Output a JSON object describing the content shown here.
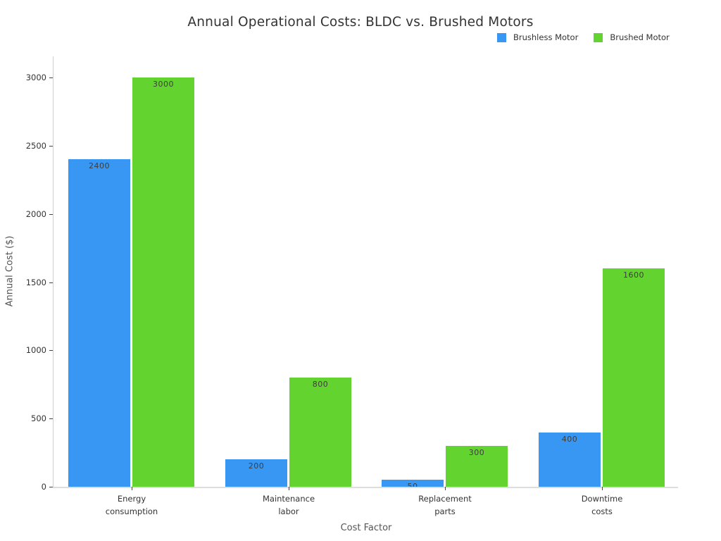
{
  "page": {
    "background": "#ffffff"
  },
  "chart_data": {
    "type": "bar",
    "title": "Annual Operational Costs: BLDC vs. Brushed Motors",
    "xlabel": "Cost Factor",
    "ylabel": "Annual Cost ($)",
    "categories": [
      "Energy\nconsumption",
      "Maintenance\nlabor",
      "Replacement\nparts",
      "Downtime\ncosts"
    ],
    "series": [
      {
        "name": "Brushless Motor",
        "color": "#3897f3",
        "values": [
          2400,
          200,
          50,
          400
        ]
      },
      {
        "name": "Brushed Motor",
        "color": "#63d32f",
        "values": [
          3000,
          800,
          300,
          1600
        ]
      }
    ],
    "ylim": [
      0,
      3000
    ],
    "yticks": [
      0,
      500,
      1000,
      1500,
      2000,
      2500,
      3000
    ],
    "grid": false,
    "legend_position": "top-right",
    "bar_value_labels": true,
    "text_colors": {
      "title": "#333333",
      "tick_labels": "#333333",
      "axis_titles": "#555555",
      "bar_value_labels": "#3d3d3d"
    }
  }
}
